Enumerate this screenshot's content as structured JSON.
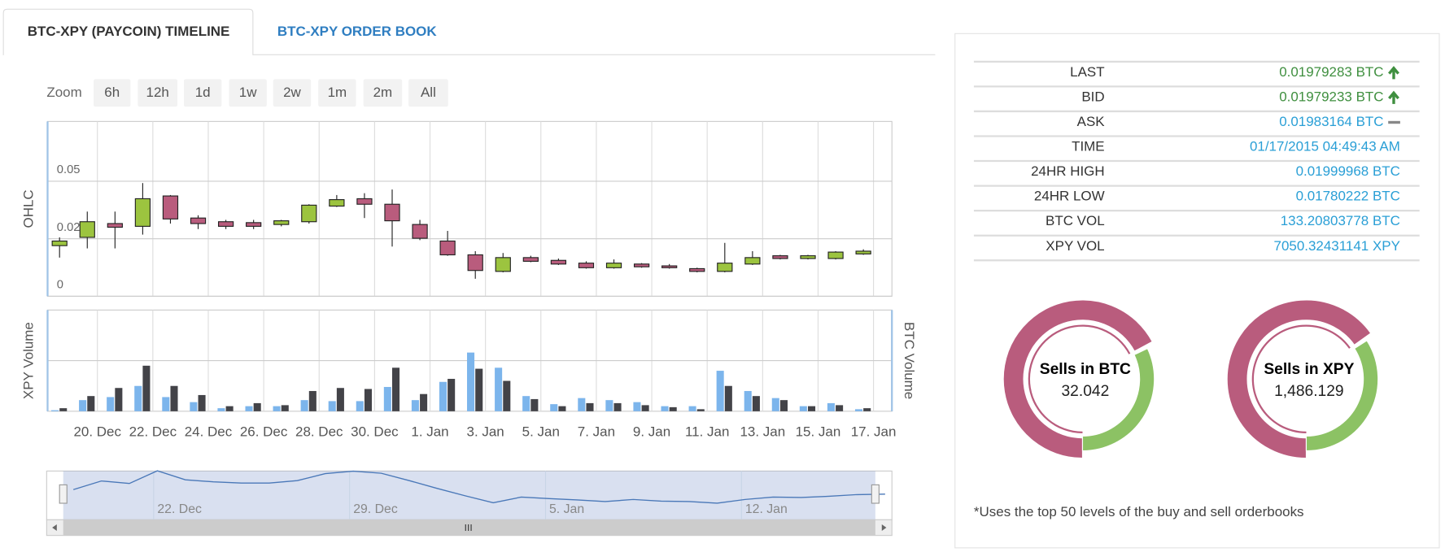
{
  "tabs": [
    "BTC-XPY (PAYCOIN) TIMELINE",
    "BTC-XPY ORDER BOOK"
  ],
  "zoom": {
    "label": "Zoom",
    "buttons": [
      "6h",
      "12h",
      "1d",
      "1w",
      "2w",
      "1m",
      "2m",
      "All"
    ]
  },
  "chart_data": [
    {
      "type": "candlestick",
      "y_label": "OHLC",
      "categories": [
        null,
        "20. Dec",
        null,
        "22. Dec",
        null,
        "24. Dec",
        null,
        "26. Dec",
        null,
        "28. Dec",
        null,
        "30. Dec",
        null,
        "1. Jan",
        null,
        "3. Jan",
        null,
        "5. Jan",
        null,
        "7. Jan",
        null,
        "9. Jan",
        null,
        "11. Jan",
        null,
        "13. Jan",
        null,
        "15. Jan",
        null,
        "17. Jan"
      ],
      "open": [
        0.022,
        0.0256,
        0.0316,
        0.0304,
        0.0436,
        0.034,
        0.0324,
        0.032,
        0.0312,
        0.0324,
        0.0392,
        0.0424,
        0.04,
        0.0312,
        0.024,
        0.018,
        0.0108,
        0.0168,
        0.0156,
        0.0144,
        0.0124,
        0.014,
        0.0132,
        0.012,
        0.0108,
        0.014,
        0.0176,
        0.0164,
        0.0164,
        0.0184
      ],
      "high": [
        0.0256,
        0.0368,
        0.0368,
        0.0492,
        0.044,
        0.0352,
        0.0332,
        0.0332,
        0.0332,
        0.04,
        0.044,
        0.0448,
        0.0464,
        0.0332,
        0.0284,
        0.0196,
        0.0188,
        0.0176,
        0.0164,
        0.0152,
        0.016,
        0.0144,
        0.014,
        0.0124,
        0.0232,
        0.0196,
        0.018,
        0.018,
        0.0196,
        0.0204
      ],
      "low": [
        0.0168,
        0.0208,
        0.0208,
        0.0268,
        0.0316,
        0.0292,
        0.0292,
        0.0292,
        0.0304,
        0.0316,
        0.0388,
        0.034,
        0.0216,
        0.0244,
        0.0176,
        0.0076,
        0.0104,
        0.0148,
        0.0136,
        0.012,
        0.012,
        0.0124,
        0.012,
        0.0104,
        0.0104,
        0.0136,
        0.016,
        0.016,
        0.016,
        0.018
      ],
      "close": [
        0.024,
        0.0324,
        0.03,
        0.0424,
        0.0336,
        0.0316,
        0.0304,
        0.0304,
        0.0328,
        0.0396,
        0.042,
        0.04,
        0.0328,
        0.0252,
        0.018,
        0.0112,
        0.0168,
        0.0152,
        0.014,
        0.0124,
        0.0144,
        0.0128,
        0.0124,
        0.0108,
        0.0144,
        0.0168,
        0.0164,
        0.0176,
        0.0192,
        0.0196
      ],
      "up_color": "#9cc43f",
      "down_color": "#b95c7d",
      "ylim": [
        0,
        0.076
      ],
      "yticks": [
        0,
        0.025,
        0.05
      ],
      "grid": true
    },
    {
      "type": "bar",
      "series": [
        {
          "name": "XPY Volume",
          "color": "#7cb5ec",
          "values": [
            1,
            11,
            14,
            25,
            14,
            9,
            3,
            5,
            5,
            11,
            10,
            10,
            24,
            11,
            29,
            58,
            43,
            15,
            7,
            13,
            11,
            9,
            5,
            5,
            40,
            20,
            13,
            5,
            8,
            2
          ]
        },
        {
          "name": "BTC Volume",
          "color": "#434348",
          "axis": "y2",
          "values": [
            3,
            15,
            23,
            45,
            25,
            16,
            5,
            8,
            6,
            20,
            23,
            22,
            43,
            17,
            32,
            42,
            30,
            12,
            5,
            8,
            8,
            6,
            4,
            2,
            25,
            15,
            11,
            5,
            6,
            3
          ]
        }
      ],
      "ylim": [
        0,
        100
      ],
      "yticks": [
        50
      ],
      "y2lim": [
        0,
        100
      ],
      "grid": true
    },
    {
      "type": "navigator",
      "categories": [
        null,
        null,
        null,
        "22. Dec",
        null,
        null,
        null,
        null,
        null,
        null,
        "29. Dec",
        null,
        null,
        null,
        null,
        null,
        null,
        "5. Jan",
        null,
        null,
        null,
        null,
        null,
        null,
        "12. Jan",
        null,
        null,
        null,
        null,
        null
      ],
      "color": "#4a78b8"
    }
  ],
  "stats": [
    {
      "label": "LAST",
      "value": "0.01979283 BTC",
      "trend": "up"
    },
    {
      "label": "BID",
      "value": "0.01979233 BTC",
      "trend": "up"
    },
    {
      "label": "ASK",
      "value": "0.01983164 BTC",
      "trend": "flat"
    },
    {
      "label": "TIME",
      "value": "01/17/2015 04:49:43 AM"
    },
    {
      "label": "24HR HIGH",
      "value": "0.01999968 BTC"
    },
    {
      "label": "24HR LOW",
      "value": "0.01780222 BTC"
    },
    {
      "label": "BTC VOL",
      "value": "133.20803778 BTC"
    },
    {
      "label": "XPY VOL",
      "value": "7050.32431141 XPY"
    }
  ],
  "donuts": [
    {
      "title": "Sells in BTC",
      "value": "32.042",
      "values": [
        68,
        32
      ],
      "colors": [
        "#b95c7d",
        "#8cc264"
      ]
    },
    {
      "title": "Sells in XPY",
      "value": "1,486.129",
      "values": [
        66,
        34
      ],
      "colors": [
        "#b95c7d",
        "#8cc264"
      ]
    }
  ],
  "footnote": "*Uses the top 50 levels of the buy and sell orderbooks"
}
